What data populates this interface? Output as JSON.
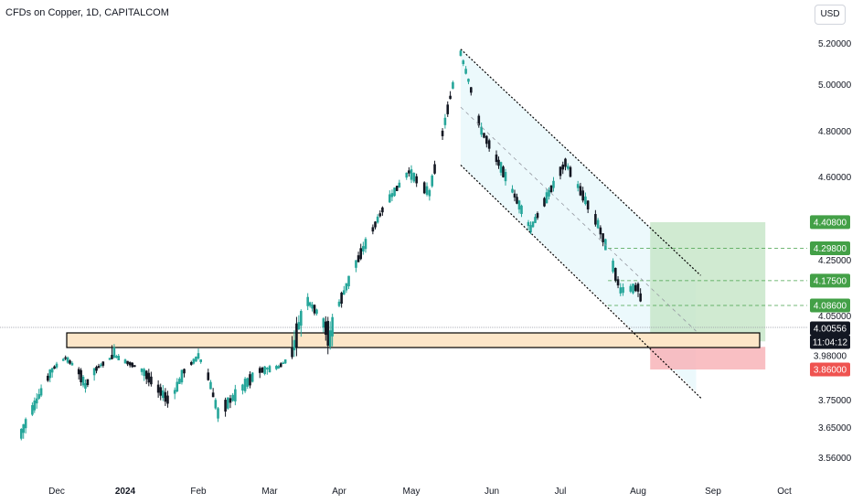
{
  "header": {
    "title": "CFDs on Copper, 1D, CAPITALCOM",
    "currency": "USD"
  },
  "colors": {
    "up": "#26a69a",
    "down": "#131722",
    "channel_fill": "#e6f7fb",
    "zone_fill": "#fde6c8",
    "profit_fill": "#c8e6c9",
    "loss_fill": "#f8b4b8",
    "tp_tag": "#43a047",
    "sl_tag": "#ef5350",
    "last_tag": "#131722"
  },
  "chart_data": {
    "type": "candlestick",
    "x_labels": [
      "Dec",
      "2024",
      "Feb",
      "Mar",
      "Apr",
      "May",
      "Jun",
      "Jul",
      "Aug",
      "Sep",
      "Oct"
    ],
    "y_ticks": [
      "5.20000",
      "5.00000",
      "4.80000",
      "4.60000",
      "4.25000",
      "4.05000",
      "3.75000",
      "3.65000",
      "3.56000"
    ],
    "y_tick_values": [
      5.2,
      5.0,
      4.8,
      4.6,
      4.25,
      4.05,
      3.75,
      3.65,
      3.56
    ],
    "ylim": [
      3.5,
      5.27
    ],
    "series_hint": "daily OHLC from Nov 2023 to Aug 2024",
    "keypoints": [
      {
        "date": "2023-11-15",
        "price": 3.63
      },
      {
        "date": "2023-12-05",
        "price": 3.96
      },
      {
        "date": "2023-12-14",
        "price": 3.8
      },
      {
        "date": "2023-12-27",
        "price": 3.98
      },
      {
        "date": "2024-01-20",
        "price": 3.74
      },
      {
        "date": "2024-02-01",
        "price": 3.97
      },
      {
        "date": "2024-02-09",
        "price": 3.7
      },
      {
        "date": "2024-02-26",
        "price": 3.86
      },
      {
        "date": "2024-03-05",
        "price": 3.88
      },
      {
        "date": "2024-03-18",
        "price": 4.1
      },
      {
        "date": "2024-03-28",
        "price": 4.01
      },
      {
        "date": "2024-04-20",
        "price": 4.48
      },
      {
        "date": "2024-04-30",
        "price": 4.62
      },
      {
        "date": "2024-05-08",
        "price": 4.53
      },
      {
        "date": "2024-05-20",
        "price": 5.15
      },
      {
        "date": "2024-05-28",
        "price": 4.8
      },
      {
        "date": "2024-06-06",
        "price": 4.62
      },
      {
        "date": "2024-06-18",
        "price": 4.38
      },
      {
        "date": "2024-07-03",
        "price": 4.66
      },
      {
        "date": "2024-07-16",
        "price": 4.4
      },
      {
        "date": "2024-07-25",
        "price": 4.14
      },
      {
        "date": "2024-08-01",
        "price": 4.15
      },
      {
        "date": "2024-08-05",
        "price": 4.01
      }
    ],
    "price_tags": [
      {
        "label": "4.40800",
        "value": 4.408,
        "kind": "tp"
      },
      {
        "label": "4.29800",
        "value": 4.298,
        "kind": "tp"
      },
      {
        "label": "4.17500",
        "value": 4.175,
        "kind": "tp"
      },
      {
        "label": "4.08600",
        "value": 4.086,
        "kind": "tp"
      },
      {
        "label": "4.00556",
        "value": 4.00556,
        "kind": "last"
      },
      {
        "label": "11:04:12",
        "value": 3.995,
        "kind": "countdown"
      },
      {
        "label": "3.98000",
        "value": 3.98,
        "kind": "plain"
      },
      {
        "label": "3.86000",
        "value": 3.86,
        "kind": "sl"
      }
    ],
    "zone": {
      "low": 3.985,
      "high": 4.015
    },
    "position": {
      "entry": 4.005,
      "take_profit": 4.408,
      "stop_loss": 3.86
    },
    "channel": {
      "upper": [
        {
          "date": "2024-05-20",
          "price": 5.17
        },
        {
          "date": "2024-08-25",
          "price": 4.21
        }
      ],
      "lower": [
        {
          "date": "2024-05-20",
          "price": 4.65
        },
        {
          "date": "2024-08-25",
          "price": 3.78
        }
      ]
    },
    "grid": false,
    "legend": "none"
  }
}
